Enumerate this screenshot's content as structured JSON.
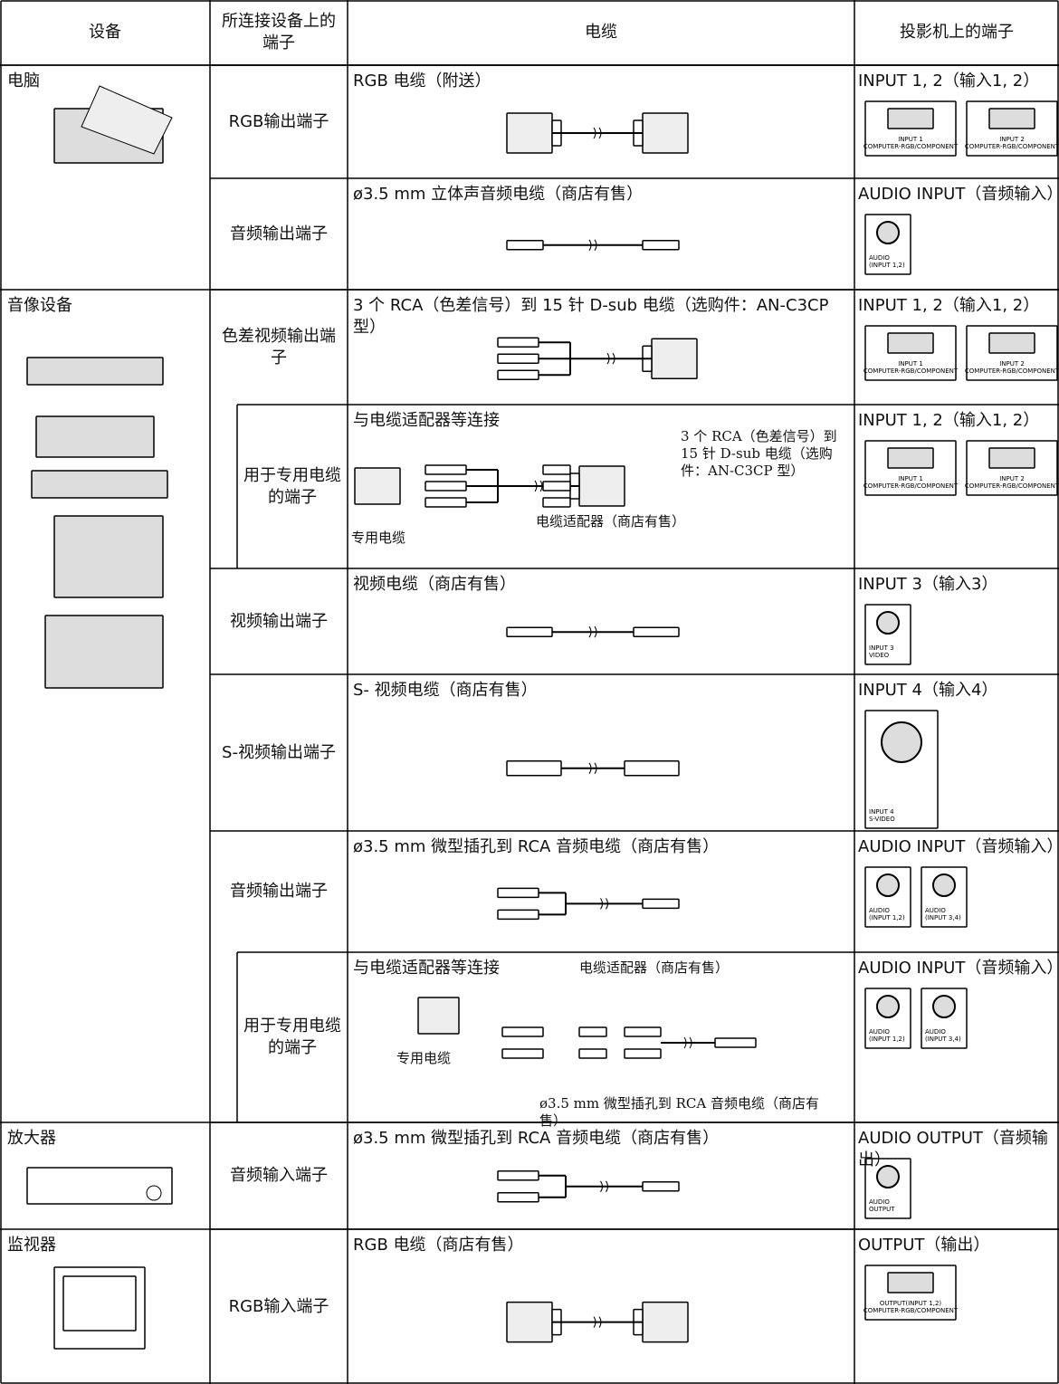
{
  "header": [
    "设备",
    "所连接设备上的端子",
    "电缆",
    "投影机上的端子"
  ],
  "devices": [
    "电脑",
    "音像设备",
    "放大器",
    "监视器"
  ],
  "rows": [
    {
      "terminal": "RGB输出端子",
      "cable": "RGB 电缆（附送）",
      "port": "INPUT 1, 2（输入1, 2）",
      "panels": [
        [
          "INPUT 1",
          "COMPUTER-RGB/COMPONENT"
        ],
        [
          "INPUT 2",
          "COMPUTER-RGB/COMPONENT"
        ]
      ]
    },
    {
      "terminal": "音频输出端子",
      "cable": "ø3.5 mm 立体声音频电缆（商店有售）",
      "port": "AUDIO INPUT（音频输入）",
      "panels": [
        [
          "AUDIO",
          "(INPUT 1,2)"
        ]
      ]
    },
    {
      "terminal": "色差视频输出端子",
      "cable": "3 个 RCA（色差信号）到 15 针 D-sub 电缆（选购件：AN-C3CP 型）",
      "port": "INPUT 1, 2（输入1, 2）",
      "panels": [
        [
          "INPUT 1",
          "COMPUTER-RGB/COMPONENT"
        ],
        [
          "INPUT 2",
          "COMPUTER-RGB/COMPONENT"
        ]
      ]
    },
    {
      "terminal": "用于专用电缆的端子",
      "cable": "与电缆适配器等连接",
      "notes": [
        "3 个 RCA（色差信号）到 15 针 D-sub 电缆（选购件：AN-C3CP 型）",
        "电缆适配器（商店有售）",
        "专用电缆"
      ],
      "port": "INPUT 1, 2（输入1, 2）",
      "panels": [
        [
          "INPUT 1",
          "COMPUTER-RGB/COMPONENT"
        ],
        [
          "INPUT 2",
          "COMPUTER-RGB/COMPONENT"
        ]
      ]
    },
    {
      "terminal": "视频输出端子",
      "cable": "视频电缆（商店有售）",
      "port": "INPUT 3（输入3）",
      "panels": [
        [
          "INPUT 3",
          "VIDEO"
        ]
      ]
    },
    {
      "terminal": "S-视频输出端子",
      "cable": "S- 视频电缆（商店有售）",
      "port": "INPUT 4（输入4）",
      "panels": [
        [
          "INPUT 4",
          "S-VIDEO"
        ]
      ]
    },
    {
      "terminal": "音频输出端子",
      "cable": "ø3.5 mm 微型插孔到 RCA 音频电缆（商店有售）",
      "port": "AUDIO INPUT（音频输入）",
      "panels": [
        [
          "AUDIO",
          "(INPUT 1,2)"
        ],
        [
          "AUDIO",
          "(INPUT 3,4)"
        ]
      ]
    },
    {
      "terminal": "用于专用电缆的端子",
      "cable": "与电缆适配器等连接",
      "notes": [
        "电缆适配器（商店有售）",
        "专用电缆",
        "ø3.5 mm 微型插孔到 RCA 音频电缆（商店有售）"
      ],
      "port": "AUDIO INPUT（音频输入）",
      "panels": [
        [
          "AUDIO",
          "(INPUT 1,2)"
        ],
        [
          "AUDIO",
          "(INPUT 3,4)"
        ]
      ]
    },
    {
      "terminal": "音频输入端子",
      "cable": "ø3.5 mm 微型插孔到 RCA 音频电缆（商店有售）",
      "port": "AUDIO OUTPUT（音频输出）",
      "panels": [
        [
          "AUDIO",
          "OUTPUT"
        ]
      ]
    },
    {
      "terminal": "RGB输入端子",
      "cable": "RGB 电缆（商店有售）",
      "port": "OUTPUT（输出）",
      "panels": [
        [
          "OUTPUT(INPUT 1,2)",
          "COMPUTER-RGB/COMPONENT"
        ]
      ]
    }
  ]
}
